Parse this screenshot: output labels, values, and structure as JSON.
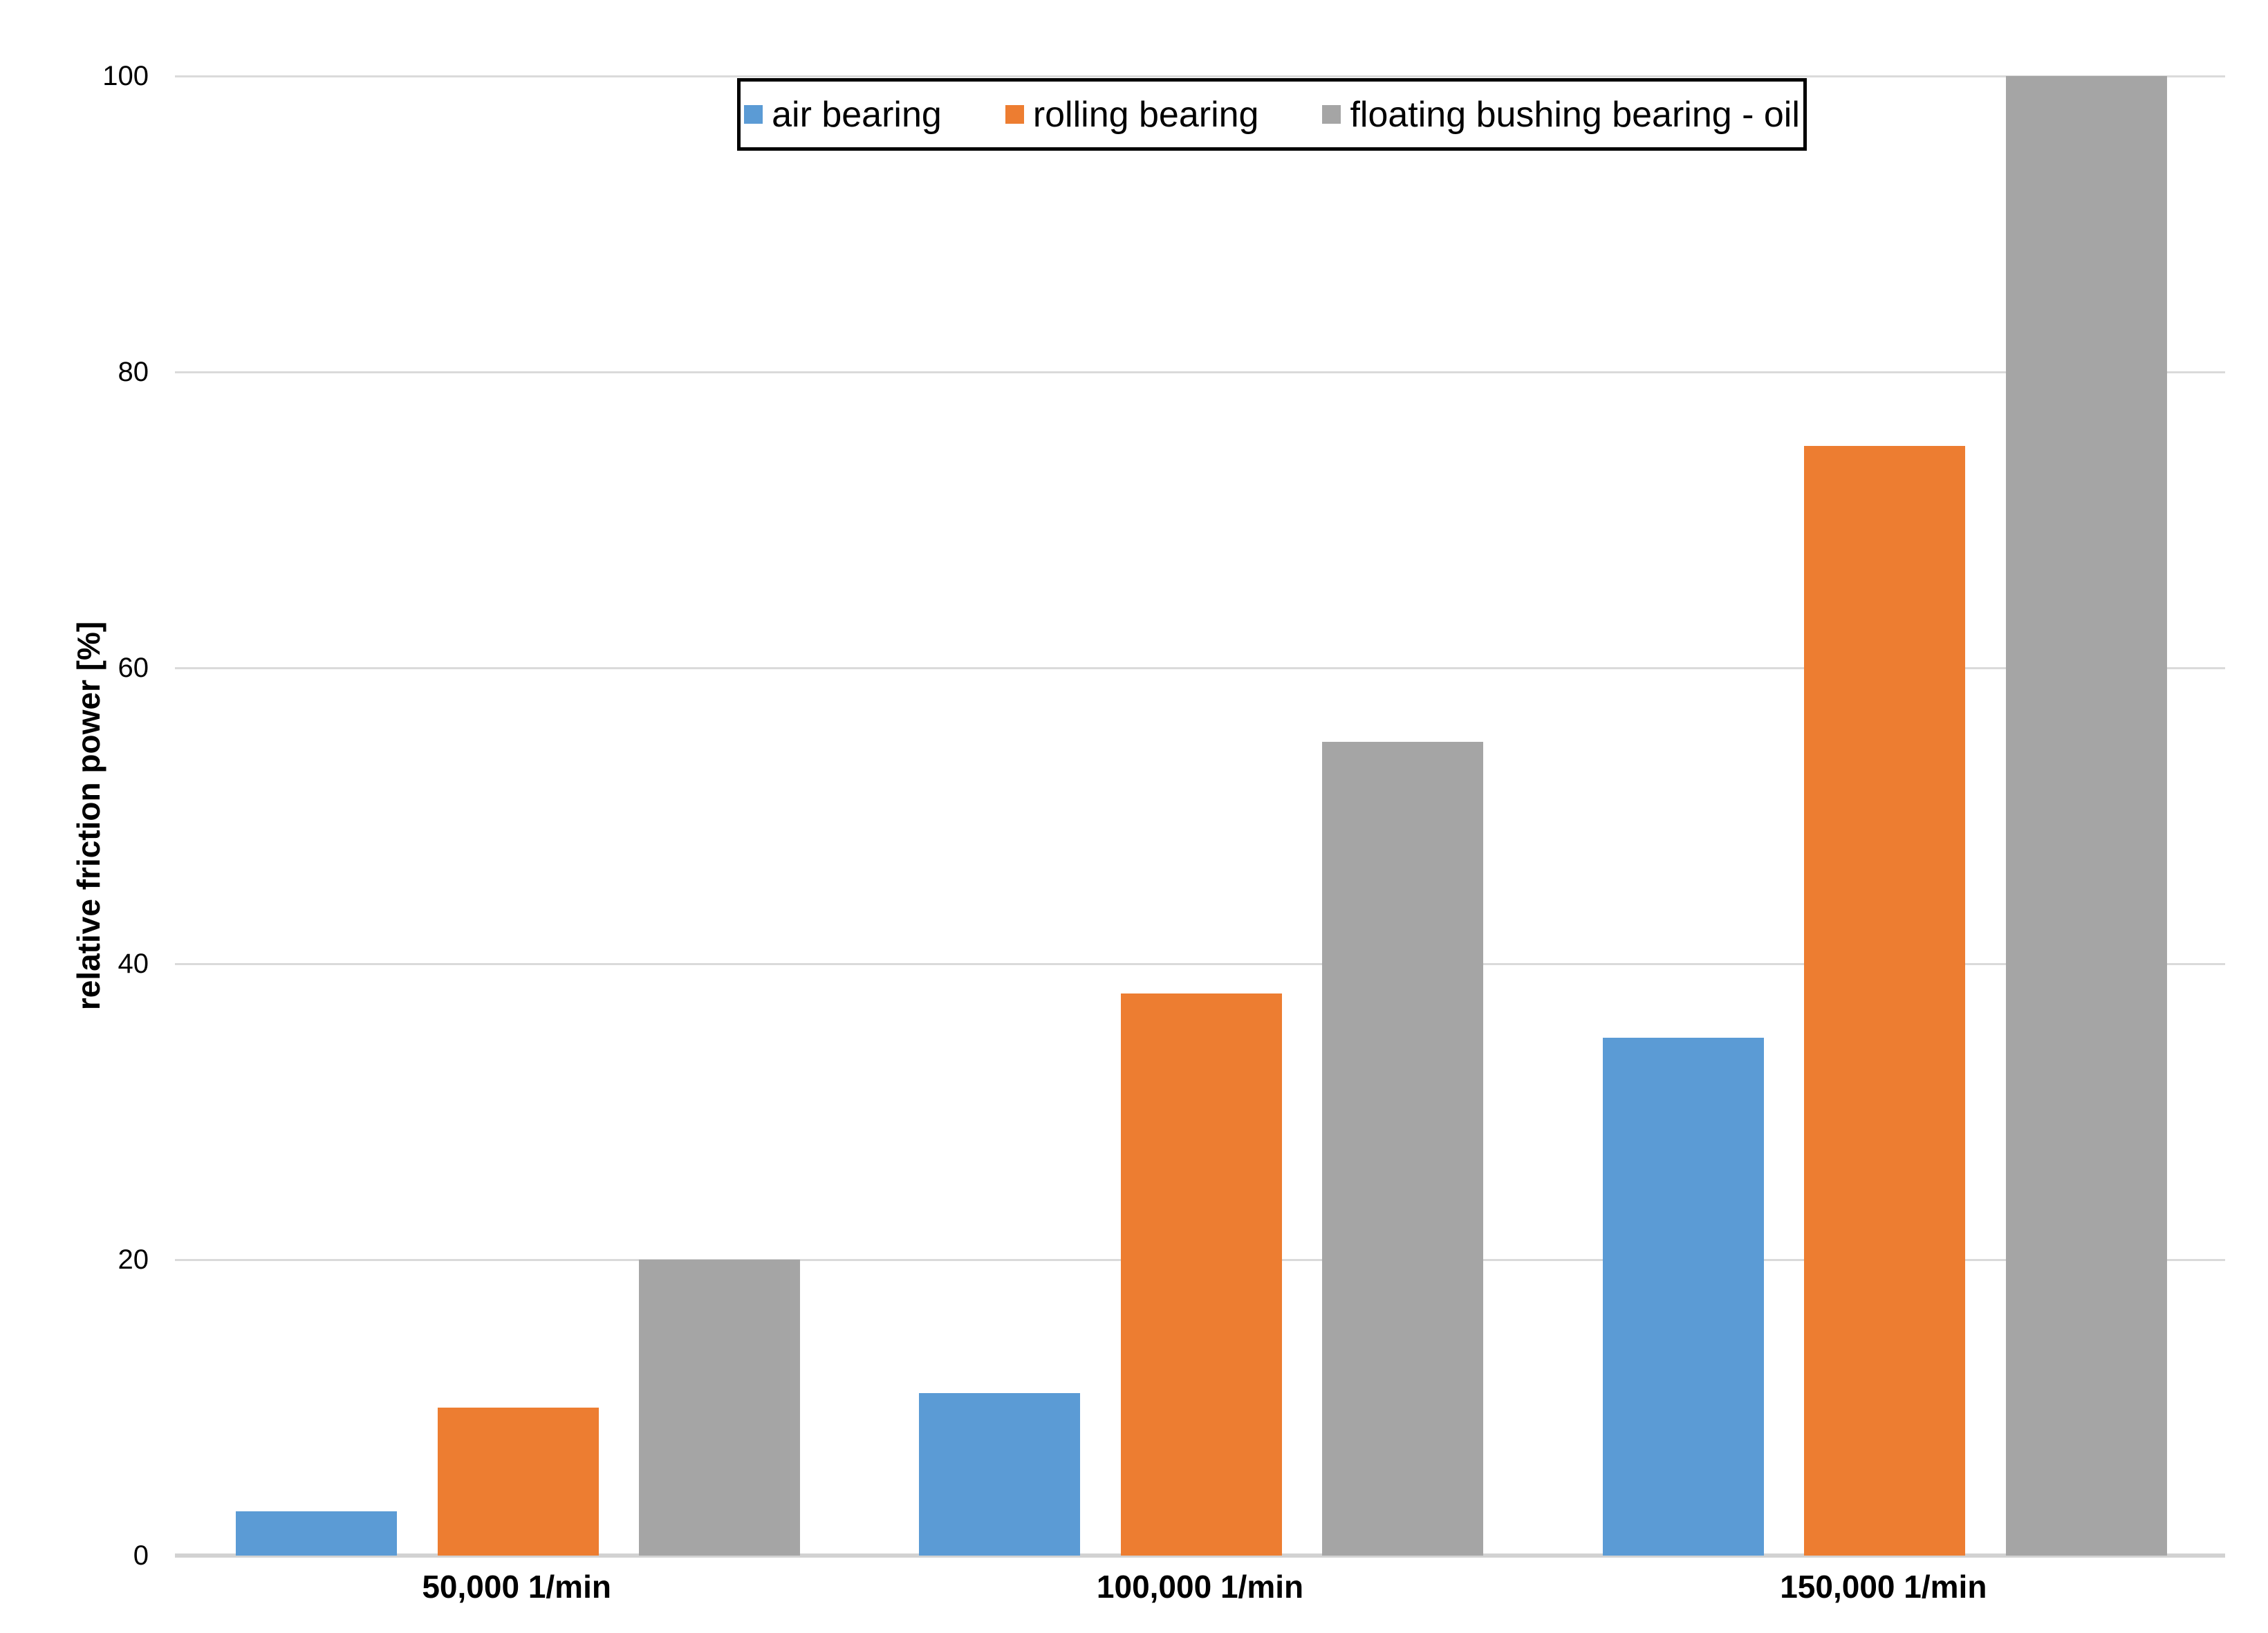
{
  "chart_data": {
    "type": "bar",
    "title": "",
    "categories": [
      "50,000 1/min",
      "100,000 1/min",
      "150,000 1/min"
    ],
    "series": [
      {
        "name": "air bearing",
        "color": "#5B9BD5",
        "values": [
          3,
          11,
          35
        ]
      },
      {
        "name": "rolling bearing",
        "color": "#ED7D31",
        "values": [
          10,
          38,
          75
        ]
      },
      {
        "name": "floating bushing bearing - oil",
        "color": "#A5A5A5",
        "values": [
          20,
          55,
          100
        ]
      }
    ],
    "xlabel": "",
    "ylabel": "relative friction power [%]",
    "ylim": [
      0,
      100
    ],
    "yticks": [
      0,
      20,
      40,
      60,
      80,
      100
    ],
    "ytick_labels": [
      "0",
      "20",
      "40",
      "60",
      "80",
      "100"
    ],
    "grid": true,
    "gridline_color": "#DADADA",
    "axis_line_color": "#D2D2D2",
    "legend_position": "top-center",
    "background_color": "#FFFFFF",
    "text_color": "#000000"
  }
}
